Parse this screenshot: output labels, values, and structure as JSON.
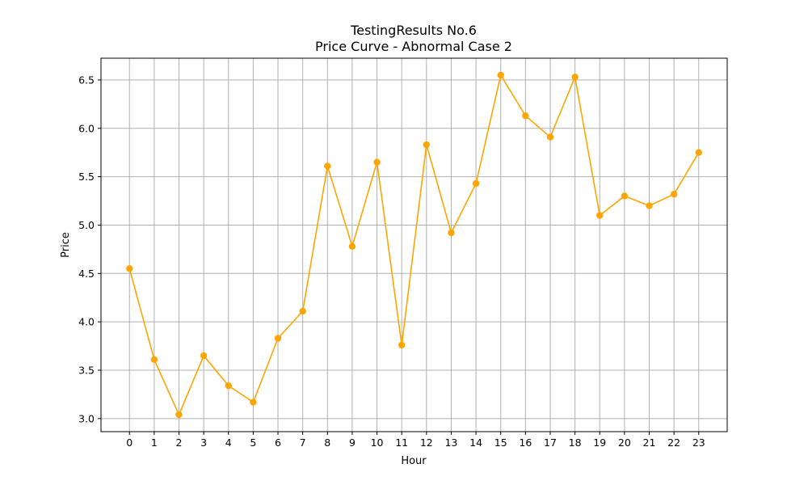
{
  "chart_data": {
    "type": "line",
    "title": "TestingResults No.6",
    "subtitle": "Price Curve - Abnormal Case 2",
    "xlabel": "Hour",
    "ylabel": "Price",
    "x": [
      0,
      1,
      2,
      3,
      4,
      5,
      6,
      7,
      8,
      9,
      10,
      11,
      12,
      13,
      14,
      15,
      16,
      17,
      18,
      19,
      20,
      21,
      22,
      23
    ],
    "series": [
      {
        "values": [
          4.55,
          3.61,
          3.04,
          3.65,
          3.34,
          3.17,
          3.83,
          4.11,
          5.61,
          4.78,
          5.65,
          3.76,
          5.83,
          4.92,
          5.43,
          6.55,
          6.13,
          5.91,
          6.53,
          5.1,
          5.3,
          5.2,
          5.32,
          5.75
        ],
        "color": "#ffa500",
        "marker": "circle"
      }
    ],
    "xticks": [
      "0",
      "1",
      "2",
      "3",
      "4",
      "5",
      "6",
      "7",
      "8",
      "9",
      "10",
      "11",
      "12",
      "13",
      "14",
      "15",
      "16",
      "17",
      "18",
      "19",
      "20",
      "21",
      "22",
      "23"
    ],
    "yticks": [
      "3.0",
      "3.5",
      "4.0",
      "4.5",
      "5.0",
      "5.5",
      "6.0",
      "6.5"
    ],
    "xlim": [
      -1.15,
      24.15
    ],
    "ylim": [
      2.865,
      6.725
    ],
    "grid": true
  }
}
